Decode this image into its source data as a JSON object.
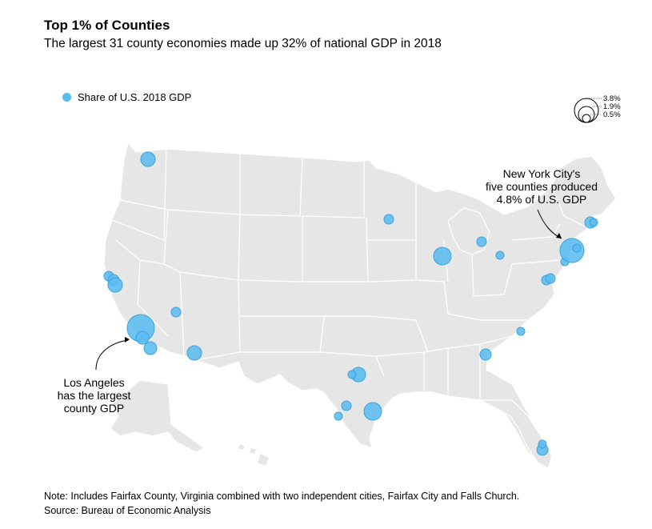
{
  "title": "Top 1% of Counties",
  "subtitle": "The largest 31 county economies made up 32% of national GDP in 2018",
  "legend": {
    "label": "Share of U.S. 2018 GDP",
    "color": "#5bbcf0"
  },
  "size_legend": {
    "values": [
      "3.8%",
      "1.9%",
      "0.5%"
    ]
  },
  "annotations": {
    "nyc_line1": "New York City's",
    "nyc_line2": "five counties produced",
    "nyc_line3": "4.8% of U.S. GDP",
    "la_line1": "Los Angeles",
    "la_line2": "has the largest",
    "la_line3": "county GDP"
  },
  "footer": {
    "note": "Note: Includes Fairfax County, Virginia combined with two independent cities, Fairfax City and Falls Church.",
    "source": "Source: Bureau of Economic Analysis"
  },
  "colors": {
    "land": "#e6e6e6",
    "border": "#ffffff",
    "bubble": "#5bbcf0",
    "bubble_stroke": "#3aa4dd"
  }
}
